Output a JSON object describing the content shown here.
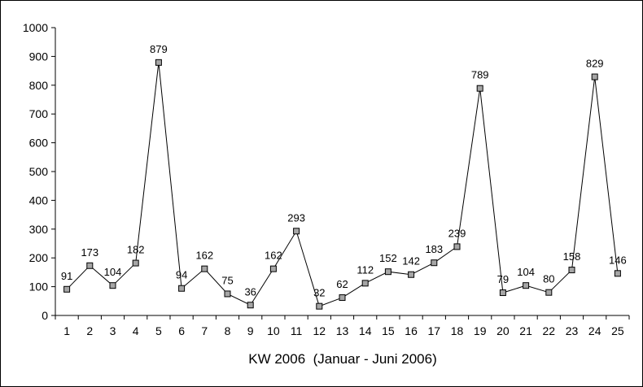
{
  "chart_data": {
    "type": "line",
    "title": "",
    "xlabel": "KW 2006  (Januar - Juni 2006)",
    "ylabel": "",
    "ylim": [
      0,
      1000
    ],
    "yticks": [
      0,
      100,
      200,
      300,
      400,
      500,
      600,
      700,
      800,
      900,
      1000
    ],
    "categories": [
      "1",
      "2",
      "3",
      "4",
      "5",
      "6",
      "7",
      "8",
      "9",
      "10",
      "11",
      "12",
      "13",
      "14",
      "15",
      "16",
      "17",
      "18",
      "19",
      "20",
      "21",
      "22",
      "23",
      "24",
      "25"
    ],
    "series": [
      {
        "values": [
          91,
          173,
          104,
          182,
          879,
          94,
          162,
          75,
          36,
          162,
          293,
          32,
          62,
          112,
          152,
          142,
          183,
          239,
          789,
          79,
          104,
          80,
          158,
          829,
          146
        ],
        "labels": [
          "91",
          "173",
          "104",
          "182",
          "879",
          "94",
          "162",
          "75",
          "36",
          "162",
          "293",
          "32",
          "62",
          "112",
          "152",
          "142",
          "183",
          "239",
          "789",
          "79",
          "104",
          "80",
          "158",
          "829",
          "146"
        ]
      }
    ],
    "grid": false,
    "legend": "none",
    "colors": {
      "line": "#000000",
      "marker_fill": "#a6a6a6",
      "marker_stroke": "#000000",
      "axis": "#000000"
    }
  }
}
